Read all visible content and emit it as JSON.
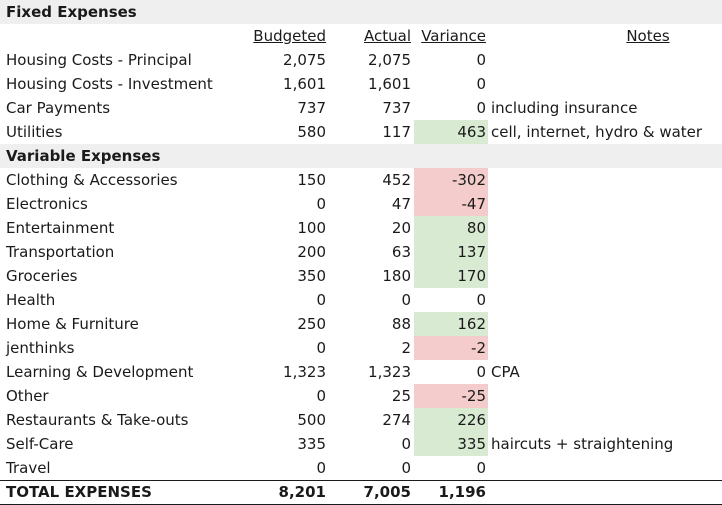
{
  "fixed_section": {
    "title": "Fixed Expenses"
  },
  "headers": {
    "budgeted": "Budgeted",
    "actual": "Actual",
    "variance": "Variance",
    "notes": "Notes"
  },
  "fixed_rows": [
    {
      "label": "Housing Costs - Principal",
      "budgeted": "2,075",
      "actual": "2,075",
      "variance": "0",
      "notes": "",
      "status": "none"
    },
    {
      "label": "Housing Costs - Investment",
      "budgeted": "1,601",
      "actual": "1,601",
      "variance": "0",
      "notes": "",
      "status": "none"
    },
    {
      "label": "Car Payments",
      "budgeted": "737",
      "actual": "737",
      "variance": "0",
      "notes": "including insurance",
      "status": "none"
    },
    {
      "label": "Utilities",
      "budgeted": "580",
      "actual": "117",
      "variance": "463",
      "notes": "cell, internet, hydro & water",
      "status": "pos"
    }
  ],
  "variable_section": {
    "title": "Variable Expenses"
  },
  "variable_rows": [
    {
      "label": "Clothing & Accessories",
      "budgeted": "150",
      "actual": "452",
      "variance": "-302",
      "notes": "",
      "status": "neg"
    },
    {
      "label": "Electronics",
      "budgeted": "0",
      "actual": "47",
      "variance": "-47",
      "notes": "",
      "status": "neg"
    },
    {
      "label": "Entertainment",
      "budgeted": "100",
      "actual": "20",
      "variance": "80",
      "notes": "",
      "status": "pos"
    },
    {
      "label": "Transportation",
      "budgeted": "200",
      "actual": "63",
      "variance": "137",
      "notes": "",
      "status": "pos"
    },
    {
      "label": "Groceries",
      "budgeted": "350",
      "actual": "180",
      "variance": "170",
      "notes": "",
      "status": "pos"
    },
    {
      "label": "Health",
      "budgeted": "0",
      "actual": "0",
      "variance": "0",
      "notes": "",
      "status": "none"
    },
    {
      "label": "Home & Furniture",
      "budgeted": "250",
      "actual": "88",
      "variance": "162",
      "notes": "",
      "status": "pos"
    },
    {
      "label": "jenthinks",
      "budgeted": "0",
      "actual": "2",
      "variance": "-2",
      "notes": "",
      "status": "neg"
    },
    {
      "label": "Learning & Development",
      "budgeted": "1,323",
      "actual": "1,323",
      "variance": "0",
      "notes": "CPA",
      "status": "none"
    },
    {
      "label": "Other",
      "budgeted": "0",
      "actual": "25",
      "variance": "-25",
      "notes": "",
      "status": "neg"
    },
    {
      "label": "Restaurants & Take-outs",
      "budgeted": "500",
      "actual": "274",
      "variance": "226",
      "notes": "",
      "status": "pos"
    },
    {
      "label": "Self-Care",
      "budgeted": "335",
      "actual": "0",
      "variance": "335",
      "notes": "haircuts + straightening",
      "status": "pos"
    },
    {
      "label": "Travel",
      "budgeted": "0",
      "actual": "0",
      "variance": "0",
      "notes": "",
      "status": "none"
    }
  ],
  "total": {
    "label": "TOTAL EXPENSES",
    "budgeted": "8,201",
    "actual": "7,005",
    "variance": "1,196"
  },
  "colors": {
    "positive": "#d9ead3",
    "negative": "#f4cccc",
    "section_bg": "#efefef"
  }
}
